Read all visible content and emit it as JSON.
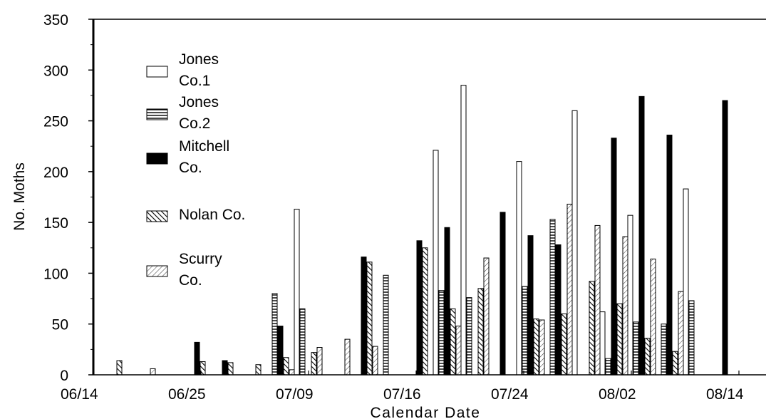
{
  "chart_data": {
    "type": "bar",
    "ylabel": "No. Moths",
    "xlabel": "Calendar Date",
    "ylim": [
      0,
      350
    ],
    "yticks": [
      0,
      50,
      100,
      150,
      200,
      250,
      300,
      350
    ],
    "xticks": [
      "06/14",
      "06/25",
      "07/09",
      "07/16",
      "07/24",
      "08/02",
      "08/14"
    ],
    "grid": false,
    "legend_position": "top-left",
    "series": [
      {
        "name": "Jones Co.1",
        "pattern": "open",
        "label_lines": [
          "Jones",
          "Co.1"
        ],
        "values": [
          null,
          null,
          null,
          null,
          null,
          null,
          null,
          163,
          null,
          null,
          null,
          null,
          221,
          285,
          null,
          210,
          null,
          260,
          62,
          157,
          null,
          183,
          null,
          null
        ]
      },
      {
        "name": "Jones Co.2",
        "pattern": "horizontal",
        "label_lines": [
          "Jones",
          "Co.2"
        ],
        "values": [
          null,
          null,
          null,
          null,
          null,
          null,
          80,
          65,
          null,
          null,
          98,
          null,
          83,
          76,
          null,
          87,
          153,
          null,
          16,
          52,
          50,
          73,
          null,
          null
        ]
      },
      {
        "name": "Mitchell Co.",
        "pattern": "solid",
        "label_lines": [
          "Mitchell",
          "Co."
        ],
        "values": [
          null,
          null,
          null,
          32,
          14,
          null,
          48,
          null,
          null,
          116,
          null,
          132,
          145,
          null,
          160,
          137,
          128,
          null,
          233,
          274,
          236,
          null,
          270,
          null
        ]
      },
      {
        "name": "Nolan Co.",
        "pattern": "diagonal",
        "label_lines": [
          "Nolan Co."
        ],
        "values": [
          14,
          null,
          null,
          13,
          12,
          10,
          17,
          22,
          null,
          111,
          null,
          125,
          65,
          85,
          null,
          55,
          60,
          92,
          70,
          36,
          23,
          null,
          null,
          null
        ]
      },
      {
        "name": "Scurry Co.",
        "pattern": "diagonal-light",
        "label_lines": [
          "Scurry",
          "Co."
        ],
        "values": [
          null,
          6,
          null,
          null,
          null,
          null,
          5,
          27,
          35,
          28,
          null,
          null,
          48,
          115,
          null,
          54,
          168,
          147,
          136,
          114,
          82,
          null,
          null,
          null
        ]
      }
    ]
  }
}
